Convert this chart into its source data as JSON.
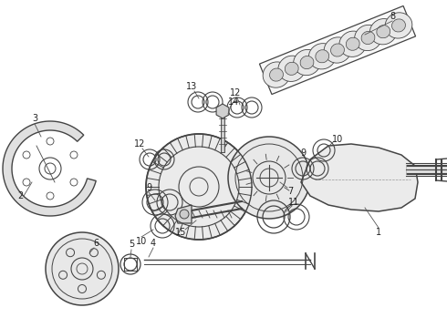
{
  "bg_color": "#ffffff",
  "line_color": "#444444",
  "label_color": "#222222",
  "figsize": [
    4.9,
    3.6
  ],
  "dpi": 100
}
